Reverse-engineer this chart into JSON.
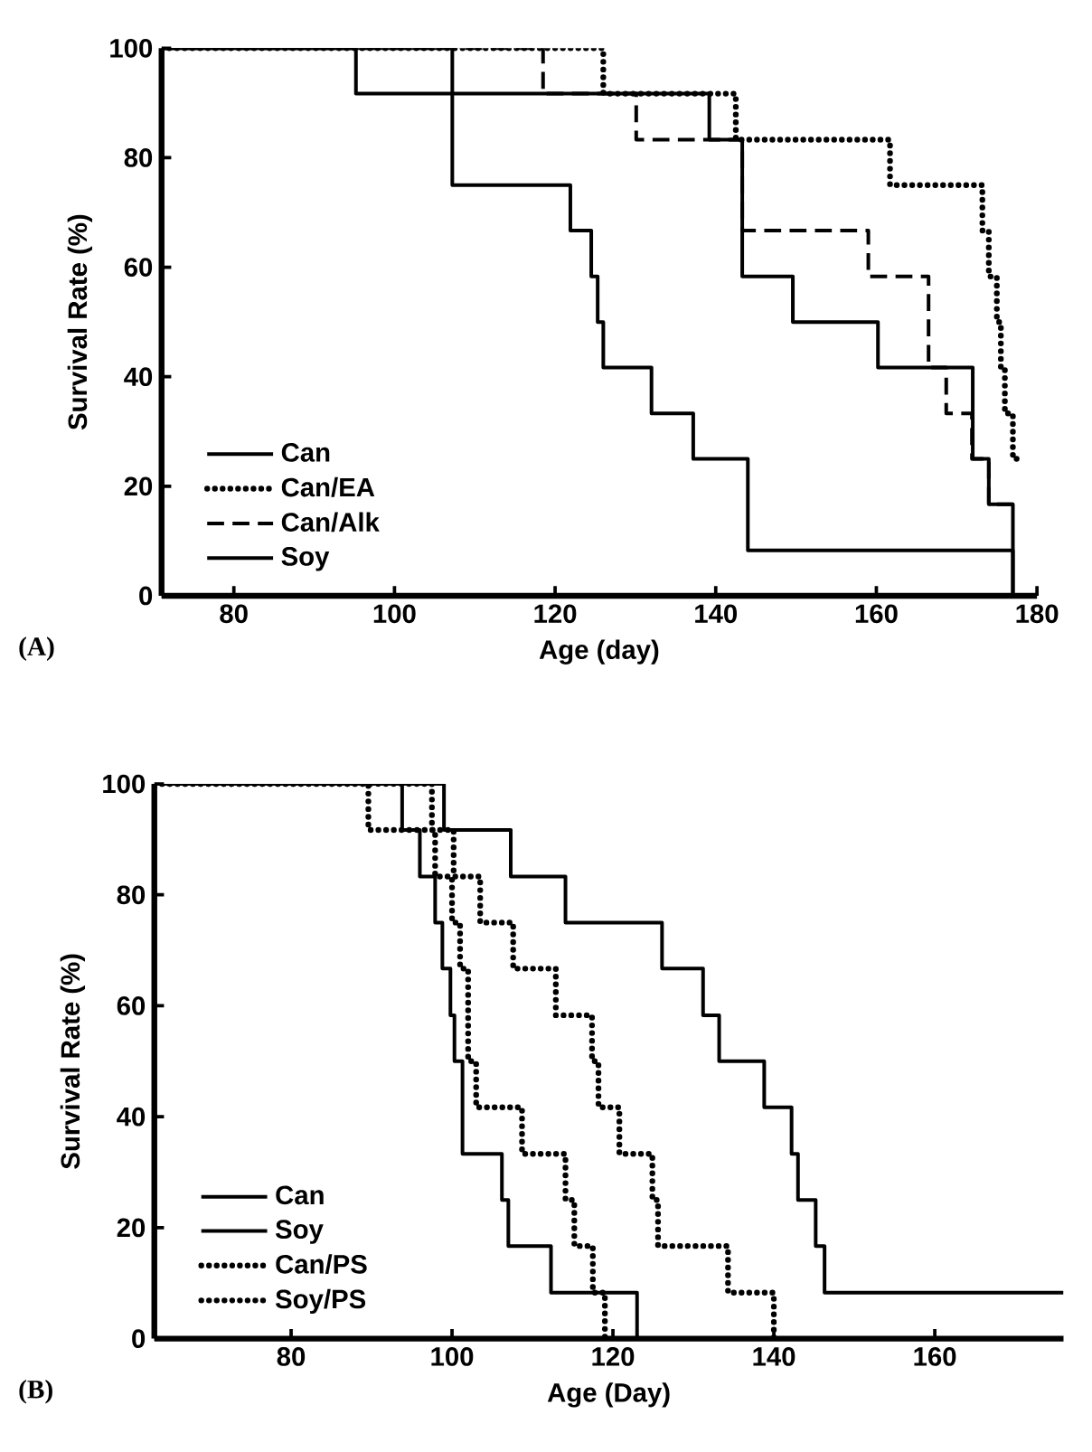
{
  "chart_data": [
    {
      "type": "step",
      "xlabel": "Age (day)",
      "ylabel": "Survival Rate (%)",
      "annotations": [
        "(A)"
      ],
      "xlim": [
        71,
        180
      ],
      "ylim": [
        0,
        100
      ],
      "xticks": [
        80,
        100,
        120,
        140,
        160,
        180
      ],
      "yticks": [
        0,
        20,
        40,
        60,
        80,
        100
      ],
      "legend": "bottom left",
      "grid": false,
      "marker": "none",
      "series": [
        {
          "name": "Can",
          "color": "#000000",
          "line_style": "solid",
          "x": [
            71,
            107.2,
            121.9,
            124.5,
            125.3,
            126,
            132,
            137.2,
            144,
            177
          ],
          "values": [
            100,
            75,
            66.7,
            58.3,
            50,
            41.7,
            33.3,
            25,
            8.3,
            0
          ]
        },
        {
          "name": "Can/EA",
          "color": "#000000",
          "line_style": "dotted",
          "x": [
            71,
            126,
            142.5,
            161.7,
            173.2,
            174,
            175,
            175.5,
            176,
            177,
            178
          ],
          "values": [
            100,
            91.7,
            83.3,
            75,
            66.7,
            58.3,
            50,
            41.7,
            33.3,
            25,
            25
          ]
        },
        {
          "name": "Can/Alk",
          "color": "#000000",
          "line_style": "dashed",
          "x": [
            71,
            118.5,
            130.1,
            143.3,
            159,
            166.5,
            168.7,
            171.9,
            174,
            177
          ],
          "values": [
            100,
            91.7,
            83.3,
            66.7,
            58.3,
            41.7,
            33.3,
            25,
            16.7,
            16.7
          ]
        },
        {
          "name": "Soy",
          "color": "#000000",
          "line_style": "solid",
          "x": [
            71,
            95.2,
            139.2,
            143.3,
            149.6,
            160.2,
            172,
            174,
            177
          ],
          "values": [
            100,
            91.7,
            83.3,
            58.3,
            50,
            41.7,
            25,
            16.7,
            0
          ]
        }
      ]
    },
    {
      "type": "step",
      "xlabel": "Age (Day)",
      "ylabel": "Survival Rate (%)",
      "annotations": [
        "(B)"
      ],
      "xlim": [
        63,
        176
      ],
      "ylim": [
        0,
        100
      ],
      "xticks": [
        80,
        100,
        120,
        140,
        160
      ],
      "yticks": [
        0,
        20,
        40,
        60,
        80,
        100
      ],
      "legend": "bottom left",
      "grid": false,
      "marker": "none",
      "series": [
        {
          "name": "Can",
          "color": "#000000",
          "line_style": "solid",
          "x": [
            63,
            93.8,
            96,
            97.9,
            98.8,
            99.8,
            100.3,
            101.3,
            106.2,
            107,
            112.3,
            123
          ],
          "values": [
            100,
            91.7,
            83.3,
            75,
            66.7,
            58.3,
            50,
            33.3,
            25,
            16.7,
            8.3,
            0
          ]
        },
        {
          "name": "Soy",
          "color": "#000000",
          "line_style": "solid",
          "x": [
            63,
            99,
            107.3,
            114.1,
            126.1,
            131.2,
            133.2,
            138.8,
            142.2,
            143,
            145.2,
            146.3,
            176
          ],
          "values": [
            100,
            91.7,
            83.3,
            75,
            66.7,
            58.3,
            50,
            41.7,
            33.3,
            25,
            16.7,
            8.3,
            8.3
          ]
        },
        {
          "name": "Can/PS",
          "color": "#000000",
          "line_style": "dotted",
          "x": [
            63,
            89.6,
            97.9,
            100,
            101,
            102,
            103,
            108.7,
            114.1,
            115.2,
            117.5,
            119
          ],
          "values": [
            100,
            91.7,
            83.3,
            75,
            66.7,
            50,
            41.7,
            33.3,
            25,
            16.7,
            8.3,
            0
          ]
        },
        {
          "name": "Soy/PS",
          "color": "#000000",
          "line_style": "dotted",
          "x": [
            63,
            97.5,
            100.2,
            103.5,
            107.6,
            112.9,
            117.4,
            118.2,
            120.8,
            124.9,
            125.6,
            134.3,
            140
          ],
          "values": [
            100,
            91.7,
            83.3,
            75,
            66.7,
            58.3,
            50,
            41.7,
            33.3,
            25,
            16.7,
            8.3,
            0
          ]
        }
      ]
    }
  ]
}
